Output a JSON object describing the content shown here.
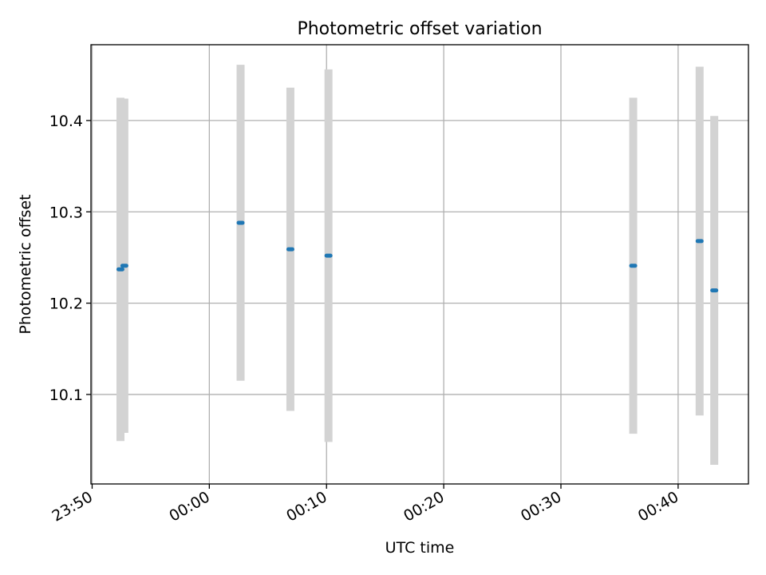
{
  "chart_data": {
    "type": "scatter",
    "title": "Photometric offset variation",
    "xlabel": "UTC time",
    "ylabel": "Photometric offset",
    "grid": true,
    "x_tick_labels": [
      "23:50",
      "00:00",
      "00:10",
      "00:20",
      "00:30",
      "00:40"
    ],
    "x_tick_minutes": [
      -10,
      0,
      10,
      20,
      30,
      40
    ],
    "xlim_minutes": [
      -10.1,
      46.0
    ],
    "y_ticks": [
      10.1,
      10.2,
      10.3,
      10.4
    ],
    "y_tick_labels": [
      "10.1",
      "10.2",
      "10.3",
      "10.4"
    ],
    "ylim": [
      10.002,
      10.483
    ],
    "series": [
      {
        "marker_color": "#1f77b4",
        "errorbar_color": "#d3d3d3",
        "points": [
          {
            "t": "23:52:25",
            "y": 10.237,
            "err": 0.188
          },
          {
            "t": "23:52:45",
            "y": 10.241,
            "err": 0.183
          },
          {
            "t": "00:02:40",
            "y": 10.288,
            "err": 0.173
          },
          {
            "t": "00:06:55",
            "y": 10.259,
            "err": 0.177
          },
          {
            "t": "00:10:10",
            "y": 10.252,
            "err": 0.204
          },
          {
            "t": "00:36:10",
            "y": 10.241,
            "err": 0.184
          },
          {
            "t": "00:41:50",
            "y": 10.268,
            "err": 0.191
          },
          {
            "t": "00:43:05",
            "y": 10.214,
            "err": 0.191
          }
        ]
      }
    ]
  }
}
